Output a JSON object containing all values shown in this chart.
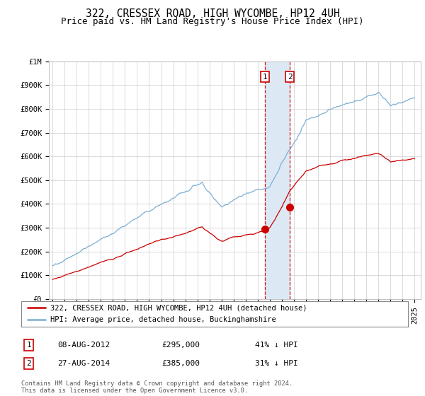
{
  "title": "322, CRESSEX ROAD, HIGH WYCOMBE, HP12 4UH",
  "subtitle": "Price paid vs. HM Land Registry's House Price Index (HPI)",
  "legend_line1": "322, CRESSEX ROAD, HIGH WYCOMBE, HP12 4UH (detached house)",
  "legend_line2": "HPI: Average price, detached house, Buckinghamshire",
  "footer": "Contains HM Land Registry data © Crown copyright and database right 2024.\nThis data is licensed under the Open Government Licence v3.0.",
  "event1_date": "08-AUG-2012",
  "event1_price": "£295,000",
  "event1_pct": "41% ↓ HPI",
  "event1_x": 2012.6,
  "event1_y": 295000,
  "event2_date": "27-AUG-2014",
  "event2_price": "£385,000",
  "event2_pct": "31% ↓ HPI",
  "event2_x": 2014.65,
  "event2_y": 385000,
  "hpi_color": "#7bafd4",
  "price_color": "#cc0000",
  "vline_color": "#cc0000",
  "shade_color": "#dce9f5",
  "ylim": [
    0,
    1000000
  ],
  "yticks": [
    0,
    100000,
    200000,
    300000,
    400000,
    500000,
    600000,
    700000,
    800000,
    900000,
    1000000
  ],
  "ytick_labels": [
    "£0",
    "£100K",
    "£200K",
    "£300K",
    "£400K",
    "£500K",
    "£600K",
    "£700K",
    "£800K",
    "£900K",
    "£1M"
  ],
  "xlim_start": 1994.7,
  "xlim_end": 2025.5,
  "background_color": "#ffffff",
  "grid_color": "#cccccc",
  "title_fontsize": 10.5,
  "subtitle_fontsize": 9,
  "axis_fontsize": 7.5
}
